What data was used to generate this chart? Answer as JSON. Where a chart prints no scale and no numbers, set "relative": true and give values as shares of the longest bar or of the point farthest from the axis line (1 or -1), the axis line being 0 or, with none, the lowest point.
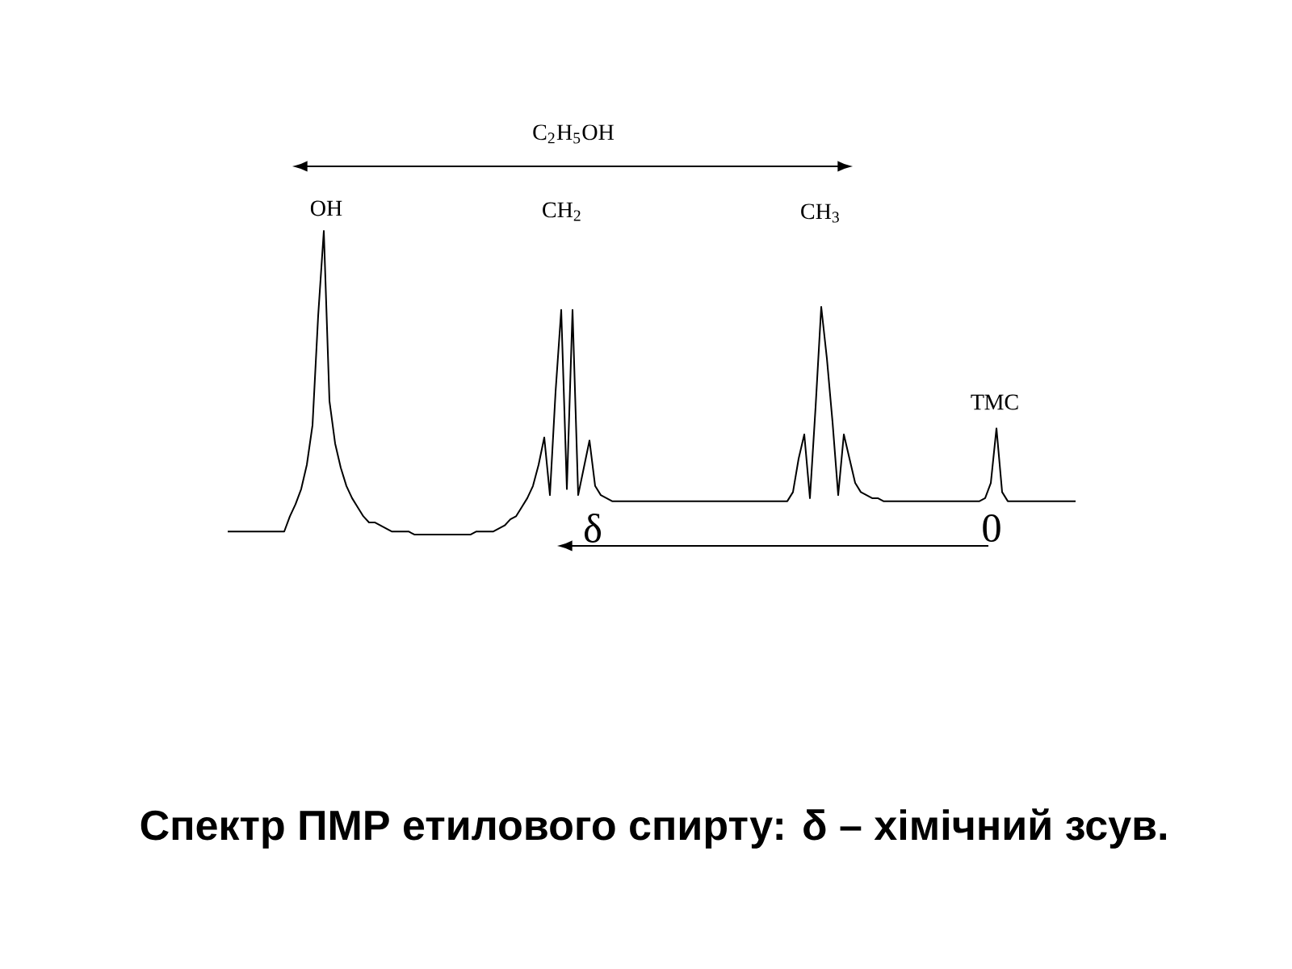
{
  "chart_data": {
    "type": "line",
    "title": "Спектр ПМР етилового спирту: δ – хімічний зсув.",
    "relative": true,
    "color": "#000000",
    "categories": [
      null,
      null,
      null,
      null,
      null,
      null,
      null,
      null,
      null,
      null,
      null,
      null,
      null,
      null,
      null,
      null,
      null,
      null,
      null,
      null,
      null,
      null,
      null,
      null,
      null,
      null,
      null,
      null,
      null,
      null,
      null,
      null,
      null,
      null,
      null,
      null,
      null,
      null,
      null,
      null,
      null,
      null,
      null,
      null,
      null,
      null,
      null,
      null,
      null,
      null,
      null,
      null,
      null,
      null,
      null,
      null,
      null,
      null,
      null,
      null,
      null,
      null,
      null,
      null,
      null,
      null,
      null,
      null,
      null,
      null,
      null,
      null,
      null,
      null,
      null,
      null,
      null,
      null,
      null,
      null,
      null,
      null,
      null,
      null,
      null,
      null,
      null,
      null,
      null,
      null,
      null,
      null,
      null,
      null,
      null,
      null,
      null,
      null,
      null,
      null,
      null,
      null,
      null,
      null,
      null,
      null,
      null,
      null,
      null,
      null,
      null,
      null,
      null,
      null,
      null,
      null,
      null,
      null,
      null,
      null,
      null,
      null,
      null,
      null,
      null,
      null,
      null,
      null,
      null,
      null,
      null,
      null,
      null,
      null,
      null,
      null,
      null,
      null,
      null,
      null,
      null,
      null,
      null,
      null,
      null,
      null,
      null,
      null,
      null,
      null,
      null
    ],
    "values": [
      0.01,
      0.01,
      0.01,
      0.01,
      0.01,
      0.01,
      0.01,
      0.01,
      0.01,
      0.01,
      0.01,
      0.06,
      0.1,
      0.15,
      0.23,
      0.36,
      0.72,
      1,
      0.44,
      0.3,
      0.22,
      0.16,
      0.12,
      0.09,
      0.06,
      0.04,
      0.04,
      0.03,
      0.02,
      0.01,
      0.01,
      0.01,
      0.01,
      0,
      0,
      0,
      0,
      0,
      0,
      0,
      0,
      0,
      0,
      0,
      0.01,
      0.01,
      0.01,
      0.01,
      0.02,
      0.03,
      0.05,
      0.06,
      0.09,
      0.12,
      0.16,
      0.23,
      0.32,
      0.13,
      0.47,
      0.74,
      0.15,
      0.74,
      0.13,
      0.22,
      0.31,
      0.16,
      0.13,
      0.12,
      0.11,
      0.11,
      0.11,
      0.11,
      0.11,
      0.11,
      0.11,
      0.11,
      0.11,
      0.11,
      0.11,
      0.11,
      0.11,
      0.11,
      0.11,
      0.11,
      0.11,
      0.11,
      0.11,
      0.11,
      0.11,
      0.11,
      0.11,
      0.11,
      0.11,
      0.11,
      0.11,
      0.11,
      0.11,
      0.11,
      0.11,
      0.11,
      0.14,
      0.25,
      0.33,
      0.12,
      0.42,
      0.75,
      0.58,
      0.37,
      0.13,
      0.33,
      0.25,
      0.17,
      0.14,
      0.13,
      0.12,
      0.12,
      0.11,
      0.11,
      0.11,
      0.11,
      0.11,
      0.11,
      0.11,
      0.11,
      0.11,
      0.11,
      0.11,
      0.11,
      0.11,
      0.11,
      0.11,
      0.11,
      0.11,
      0.11,
      0.12,
      0.17,
      0.35,
      0.14,
      0.11,
      0.11,
      0.11,
      0.11,
      0.11,
      0.11,
      0.11,
      0.11,
      0.11,
      0.11,
      0.11,
      0.11,
      0.11
    ],
    "annotations": [
      "C$_{2}$H$_{5}$OH",
      "OH",
      "CH$_{2}$",
      "CH$_{3}$",
      "ТМС",
      "δ",
      "0"
    ]
  }
}
